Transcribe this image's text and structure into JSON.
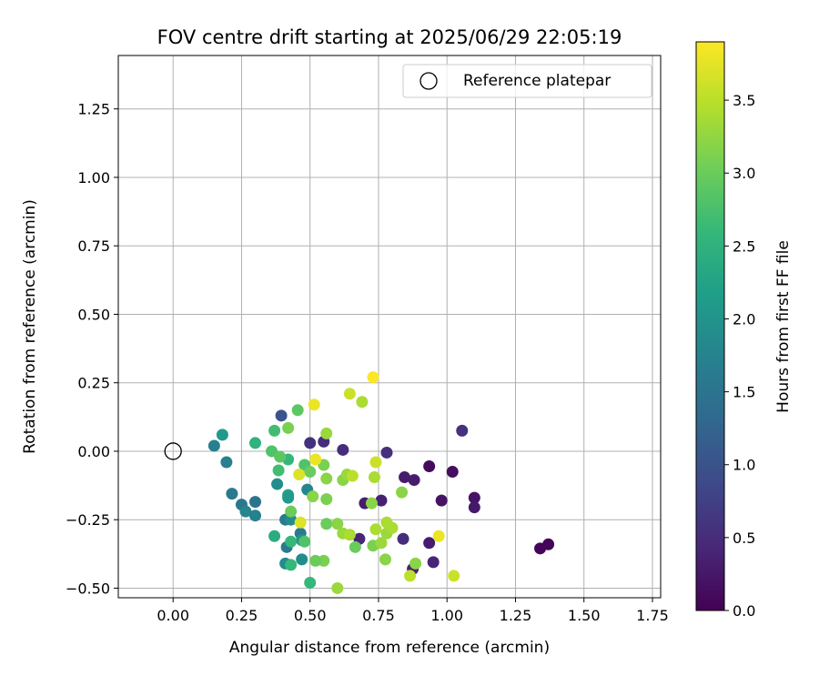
{
  "chart_data": {
    "type": "scatter",
    "title": "FOV centre drift starting at 2025/06/29 22:05:19",
    "xlabel": "Angular distance from reference (arcmin)",
    "ylabel": "Rotation from reference (arcmin)",
    "xlim": [
      -0.2,
      1.78
    ],
    "ylim": [
      -0.535,
      1.445
    ],
    "xticks": [
      "0.00",
      "0.25",
      "0.50",
      "0.75",
      "1.00",
      "1.25",
      "1.50",
      "1.75"
    ],
    "yticks": [
      "−0.50",
      "−0.25",
      "0.00",
      "0.25",
      "0.50",
      "0.75",
      "1.00",
      "1.25"
    ],
    "grid": true,
    "legend": {
      "position": "top-right",
      "entries": [
        "Reference platepar"
      ]
    },
    "reference_point": {
      "x": 0.0,
      "y": 0.0
    },
    "colorbar": {
      "label": "Hours from first FF file",
      "range": [
        0.0,
        3.9
      ],
      "ticks": [
        "0.0",
        "0.5",
        "1.0",
        "1.5",
        "2.0",
        "2.5",
        "3.0",
        "3.5"
      ],
      "colormap": "viridis",
      "colormap_stops": [
        "#440154",
        "#482878",
        "#3e4989",
        "#31688e",
        "#26828e",
        "#1f9e89",
        "#35b779",
        "#6ece58",
        "#b5de2b",
        "#fde725"
      ]
    },
    "points": [
      {
        "x": 1.37,
        "y": -0.34,
        "c": 0.05
      },
      {
        "x": 1.34,
        "y": -0.355,
        "c": 0.05
      },
      {
        "x": 0.935,
        "y": -0.055,
        "c": 0.1
      },
      {
        "x": 1.02,
        "y": -0.075,
        "c": 0.15
      },
      {
        "x": 0.98,
        "y": -0.18,
        "c": 0.2
      },
      {
        "x": 1.1,
        "y": -0.17,
        "c": 0.2
      },
      {
        "x": 1.1,
        "y": -0.205,
        "c": 0.25
      },
      {
        "x": 0.845,
        "y": -0.095,
        "c": 0.3
      },
      {
        "x": 0.88,
        "y": -0.105,
        "c": 0.3
      },
      {
        "x": 0.7,
        "y": -0.19,
        "c": 0.3
      },
      {
        "x": 0.76,
        "y": -0.18,
        "c": 0.35
      },
      {
        "x": 0.935,
        "y": -0.335,
        "c": 0.3
      },
      {
        "x": 0.95,
        "y": -0.405,
        "c": 0.4
      },
      {
        "x": 0.875,
        "y": -0.43,
        "c": 0.35
      },
      {
        "x": 0.84,
        "y": -0.32,
        "c": 0.5
      },
      {
        "x": 0.68,
        "y": -0.32,
        "c": 0.4
      },
      {
        "x": 1.055,
        "y": 0.075,
        "c": 0.55
      },
      {
        "x": 0.78,
        "y": -0.005,
        "c": 0.55
      },
      {
        "x": 0.62,
        "y": 0.005,
        "c": 0.5
      },
      {
        "x": 0.55,
        "y": 0.035,
        "c": 0.5
      },
      {
        "x": 0.5,
        "y": 0.03,
        "c": 0.55
      },
      {
        "x": 0.395,
        "y": 0.13,
        "c": 1.0
      },
      {
        "x": 0.15,
        "y": 0.02,
        "c": 1.7
      },
      {
        "x": 0.18,
        "y": 0.06,
        "c": 2.1
      },
      {
        "x": 0.195,
        "y": -0.04,
        "c": 1.7
      },
      {
        "x": 0.215,
        "y": -0.155,
        "c": 1.6
      },
      {
        "x": 0.25,
        "y": -0.195,
        "c": 1.55
      },
      {
        "x": 0.265,
        "y": -0.22,
        "c": 1.8
      },
      {
        "x": 0.3,
        "y": -0.185,
        "c": 1.5
      },
      {
        "x": 0.3,
        "y": -0.235,
        "c": 1.7
      },
      {
        "x": 0.3,
        "y": 0.03,
        "c": 2.5
      },
      {
        "x": 0.38,
        "y": -0.12,
        "c": 1.9
      },
      {
        "x": 0.41,
        "y": -0.25,
        "c": 1.6
      },
      {
        "x": 0.415,
        "y": -0.35,
        "c": 1.6
      },
      {
        "x": 0.41,
        "y": -0.41,
        "c": 1.9
      },
      {
        "x": 0.43,
        "y": -0.25,
        "c": 1.9
      },
      {
        "x": 0.465,
        "y": -0.3,
        "c": 1.6
      },
      {
        "x": 0.47,
        "y": -0.395,
        "c": 1.9
      },
      {
        "x": 0.49,
        "y": -0.14,
        "c": 1.8
      },
      {
        "x": 0.42,
        "y": -0.16,
        "c": 2.2
      },
      {
        "x": 0.42,
        "y": -0.17,
        "c": 2.1
      },
      {
        "x": 0.47,
        "y": -0.325,
        "c": 2.0
      },
      {
        "x": 0.37,
        "y": -0.31,
        "c": 2.4
      },
      {
        "x": 0.42,
        "y": -0.03,
        "c": 2.6
      },
      {
        "x": 0.36,
        "y": 0.0,
        "c": 2.8
      },
      {
        "x": 0.37,
        "y": 0.075,
        "c": 2.7
      },
      {
        "x": 0.39,
        "y": -0.02,
        "c": 2.9
      },
      {
        "x": 0.385,
        "y": -0.07,
        "c": 2.7
      },
      {
        "x": 0.43,
        "y": -0.33,
        "c": 2.6
      },
      {
        "x": 0.43,
        "y": -0.415,
        "c": 2.6
      },
      {
        "x": 0.5,
        "y": -0.48,
        "c": 2.6
      },
      {
        "x": 0.48,
        "y": -0.33,
        "c": 2.8
      },
      {
        "x": 0.455,
        "y": 0.15,
        "c": 2.9
      },
      {
        "x": 0.42,
        "y": 0.085,
        "c": 3.1
      },
      {
        "x": 0.43,
        "y": -0.22,
        "c": 3.0
      },
      {
        "x": 0.48,
        "y": -0.05,
        "c": 2.8
      },
      {
        "x": 0.5,
        "y": -0.075,
        "c": 3.0
      },
      {
        "x": 0.55,
        "y": -0.05,
        "c": 3.1
      },
      {
        "x": 0.51,
        "y": -0.165,
        "c": 3.2
      },
      {
        "x": 0.55,
        "y": -0.4,
        "c": 3.1
      },
      {
        "x": 0.52,
        "y": -0.4,
        "c": 3.0
      },
      {
        "x": 0.56,
        "y": -0.1,
        "c": 3.2
      },
      {
        "x": 0.56,
        "y": -0.175,
        "c": 3.1
      },
      {
        "x": 0.56,
        "y": -0.265,
        "c": 3.0
      },
      {
        "x": 0.56,
        "y": 0.065,
        "c": 3.3
      },
      {
        "x": 0.6,
        "y": -0.265,
        "c": 3.2
      },
      {
        "x": 0.6,
        "y": -0.5,
        "c": 3.3
      },
      {
        "x": 0.62,
        "y": -0.3,
        "c": 3.3
      },
      {
        "x": 0.62,
        "y": -0.105,
        "c": 3.2
      },
      {
        "x": 0.635,
        "y": -0.085,
        "c": 3.3
      },
      {
        "x": 0.645,
        "y": -0.305,
        "c": 3.4
      },
      {
        "x": 0.655,
        "y": -0.09,
        "c": 3.5
      },
      {
        "x": 0.665,
        "y": -0.35,
        "c": 3.0
      },
      {
        "x": 0.69,
        "y": 0.18,
        "c": 3.4
      },
      {
        "x": 0.645,
        "y": 0.21,
        "c": 3.6
      },
      {
        "x": 0.725,
        "y": -0.19,
        "c": 3.2
      },
      {
        "x": 0.73,
        "y": -0.345,
        "c": 3.1
      },
      {
        "x": 0.735,
        "y": -0.095,
        "c": 3.4
      },
      {
        "x": 0.74,
        "y": -0.04,
        "c": 3.6
      },
      {
        "x": 0.74,
        "y": -0.285,
        "c": 3.4
      },
      {
        "x": 0.76,
        "y": -0.335,
        "c": 3.3
      },
      {
        "x": 0.775,
        "y": -0.395,
        "c": 3.2
      },
      {
        "x": 0.78,
        "y": -0.26,
        "c": 3.4
      },
      {
        "x": 0.78,
        "y": -0.3,
        "c": 3.3
      },
      {
        "x": 0.8,
        "y": -0.28,
        "c": 3.4
      },
      {
        "x": 0.835,
        "y": -0.15,
        "c": 3.2
      },
      {
        "x": 0.865,
        "y": -0.455,
        "c": 3.5
      },
      {
        "x": 0.885,
        "y": -0.41,
        "c": 3.2
      },
      {
        "x": 0.97,
        "y": -0.31,
        "c": 3.8
      },
      {
        "x": 1.025,
        "y": -0.455,
        "c": 3.6
      },
      {
        "x": 0.46,
        "y": -0.085,
        "c": 3.7
      },
      {
        "x": 0.52,
        "y": -0.03,
        "c": 3.8
      },
      {
        "x": 0.515,
        "y": 0.17,
        "c": 3.8
      },
      {
        "x": 0.465,
        "y": -0.26,
        "c": 3.7
      },
      {
        "x": 0.73,
        "y": 0.27,
        "c": 3.9
      }
    ]
  }
}
